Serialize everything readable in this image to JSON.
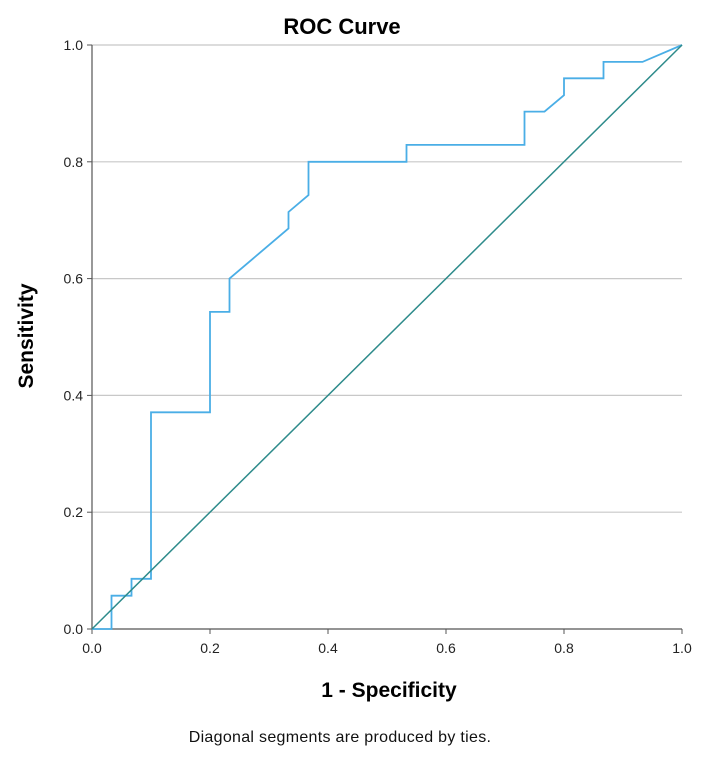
{
  "chart_data": {
    "type": "line",
    "title": "ROC Curve",
    "xlabel": "1 - Specificity",
    "ylabel": "Sensitivity",
    "xlim": [
      0,
      1
    ],
    "ylim": [
      0,
      1
    ],
    "x_ticks": [
      "0.0",
      "0.2",
      "0.4",
      "0.6",
      "0.8",
      "1.0"
    ],
    "y_ticks": [
      "0.0",
      "0.2",
      "0.4",
      "0.6",
      "0.8",
      "1.0"
    ],
    "grid": "horizontal",
    "footnote": "Diagonal segments are produced by ties.",
    "series": [
      {
        "color": "#4aaee6",
        "x": [
          0.0,
          0.033,
          0.033,
          0.067,
          0.067,
          0.1,
          0.1,
          0.2,
          0.2,
          0.233,
          0.233,
          0.333,
          0.333,
          0.367,
          0.367,
          0.533,
          0.533,
          0.733,
          0.733,
          0.767,
          0.8,
          0.8,
          0.867,
          0.867,
          0.933,
          1.0
        ],
        "y": [
          0.0,
          0.0,
          0.057,
          0.057,
          0.086,
          0.086,
          0.371,
          0.371,
          0.543,
          0.543,
          0.6,
          0.686,
          0.714,
          0.743,
          0.8,
          0.8,
          0.829,
          0.829,
          0.886,
          0.886,
          0.914,
          0.943,
          0.943,
          0.971,
          0.971,
          1.0
        ]
      },
      {
        "color": "#2e8b8b",
        "x": [
          0,
          1
        ],
        "y": [
          0,
          1
        ]
      }
    ]
  }
}
